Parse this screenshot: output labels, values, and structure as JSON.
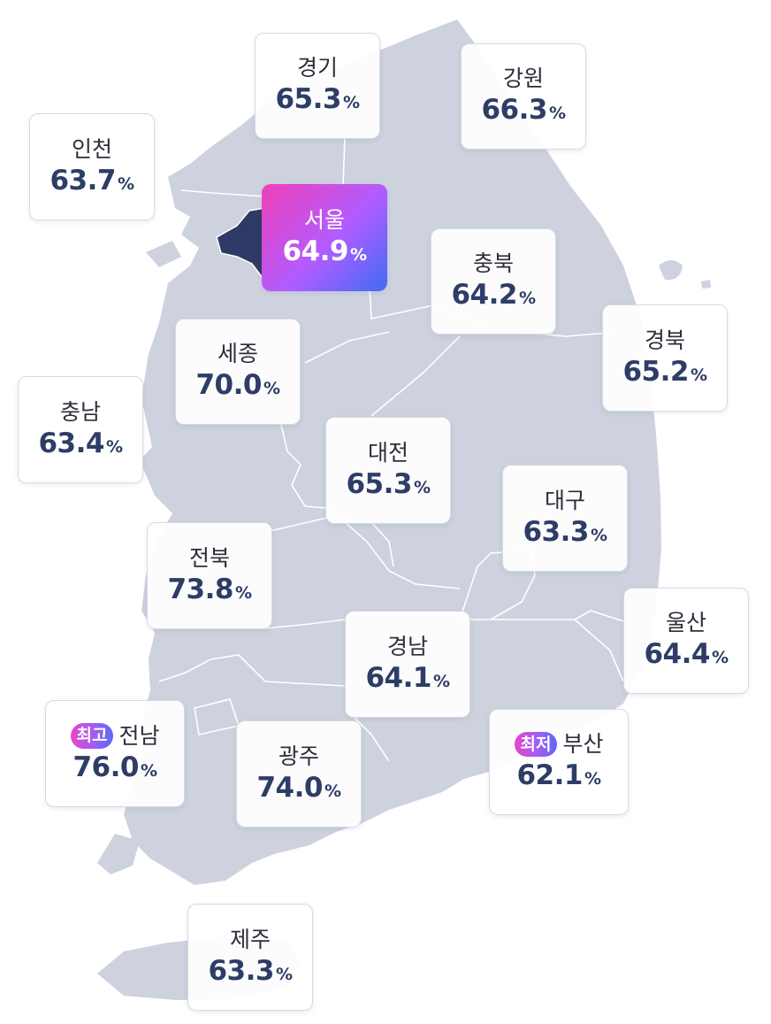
{
  "unit": "%",
  "regions": [
    {
      "id": "gyeonggi",
      "name": "경기",
      "value": "65.3"
    },
    {
      "id": "gangwon",
      "name": "강원",
      "value": "66.3"
    },
    {
      "id": "incheon",
      "name": "인천",
      "value": "63.7"
    },
    {
      "id": "seoul",
      "name": "서울",
      "value": "64.9",
      "selected": true
    },
    {
      "id": "chungbuk",
      "name": "충북",
      "value": "64.2"
    },
    {
      "id": "gyeongbuk",
      "name": "경북",
      "value": "65.2"
    },
    {
      "id": "sejong",
      "name": "세종",
      "value": "70.0"
    },
    {
      "id": "chungnam",
      "name": "충남",
      "value": "63.4"
    },
    {
      "id": "daejeon",
      "name": "대전",
      "value": "65.3"
    },
    {
      "id": "daegu",
      "name": "대구",
      "value": "63.3"
    },
    {
      "id": "jeonbuk",
      "name": "전북",
      "value": "73.8"
    },
    {
      "id": "ulsan",
      "name": "울산",
      "value": "64.4"
    },
    {
      "id": "gyeongnam",
      "name": "경남",
      "value": "64.1"
    },
    {
      "id": "jeonnam",
      "name": "전남",
      "value": "76.0",
      "badge": "최고"
    },
    {
      "id": "gwangju",
      "name": "광주",
      "value": "74.0"
    },
    {
      "id": "busan",
      "name": "부산",
      "value": "62.1",
      "badge": "최저"
    },
    {
      "id": "jeju",
      "name": "제주",
      "value": "63.3"
    }
  ],
  "colors": {
    "land": "#cdd2de",
    "border_lines": "#ffffff",
    "selected_region": "#2d3a66",
    "value_text": "#2d3d66",
    "highlight_gradient": [
      "#f040b8",
      "#b15cff",
      "#3f6cf5"
    ]
  }
}
